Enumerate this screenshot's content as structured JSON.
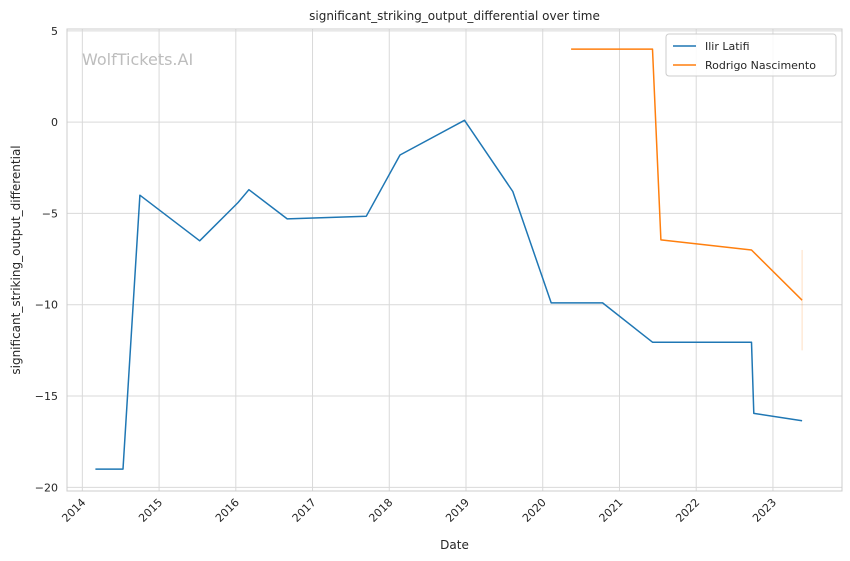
{
  "chart_data": {
    "type": "line",
    "title": "significant_striking_output_differential over time",
    "xlabel": "Date",
    "ylabel": "significant_striking_output_differential",
    "watermark": "WolfTickets.AI",
    "xlim": [
      2013.8,
      2023.9
    ],
    "ylim": [
      -20.2,
      5.1
    ],
    "x_ticks": [
      2014,
      2015,
      2016,
      2017,
      2018,
      2019,
      2020,
      2021,
      2022,
      2023
    ],
    "x_tick_labels": [
      "2014",
      "2015",
      "2016",
      "2017",
      "2018",
      "2019",
      "2020",
      "2021",
      "2022",
      "2023"
    ],
    "y_ticks": [
      5,
      0,
      -5,
      -10,
      -15,
      -20
    ],
    "y_tick_labels": [
      "5",
      "0",
      "−5",
      "−10",
      "−15",
      "−20"
    ],
    "grid": true,
    "legend_position": "top-right",
    "series": [
      {
        "name": "Ilir Latifi",
        "color": "#1f77b4",
        "points": [
          [
            2014.17,
            -19.0
          ],
          [
            2014.53,
            -19.0
          ],
          [
            2014.75,
            -4.0
          ],
          [
            2015.53,
            -6.5
          ],
          [
            2016.03,
            -4.4
          ],
          [
            2016.17,
            -3.7
          ],
          [
            2016.67,
            -5.3
          ],
          [
            2017.7,
            -5.15
          ],
          [
            2018.14,
            -1.8
          ],
          [
            2018.98,
            0.1
          ],
          [
            2019.61,
            -3.8
          ],
          [
            2020.11,
            -9.9
          ],
          [
            2020.78,
            -9.9
          ],
          [
            2021.43,
            -12.05
          ],
          [
            2022.72,
            -12.05
          ],
          [
            2022.75,
            -15.95
          ],
          [
            2023.38,
            -16.35
          ]
        ]
      },
      {
        "name": "Rodrigo Nascimento",
        "color": "#ff7f0e",
        "points": [
          [
            2020.37,
            4.0
          ],
          [
            2021.43,
            4.0
          ],
          [
            2021.54,
            -6.45
          ],
          [
            2022.72,
            -7.0
          ],
          [
            2023.38,
            -9.75
          ]
        ],
        "error_bar": {
          "x": 2023.38,
          "low": -12.5,
          "high": -7.0
        }
      }
    ]
  }
}
